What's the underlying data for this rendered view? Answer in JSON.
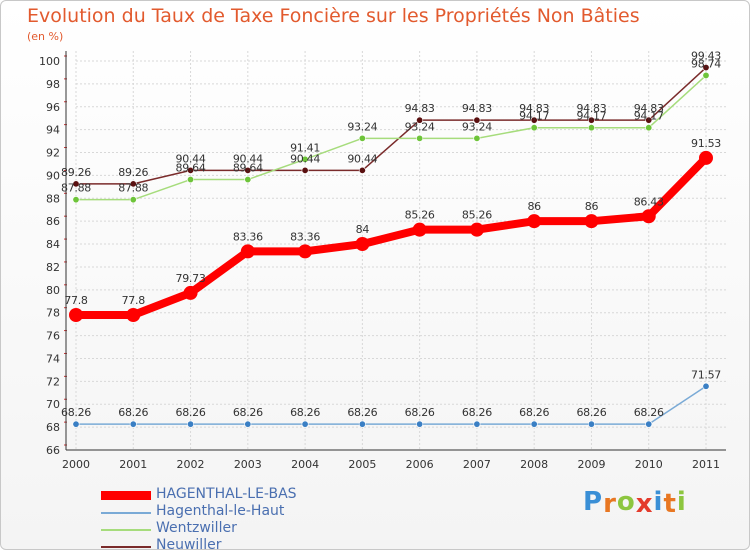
{
  "title": "Evolution du Taux de Taxe Foncière sur les Propriétés Non Bâties",
  "unit_label": "(en %)",
  "logo": {
    "letters": [
      "P",
      "r",
      "o",
      "x",
      "i",
      "t",
      "i"
    ],
    "colors": [
      "#3a8fd6",
      "#e87722",
      "#8dc63f",
      "#e43b2c",
      "#3a8fd6",
      "#e87722",
      "#8dc63f"
    ]
  },
  "chart_data": {
    "type": "line",
    "title": "Evolution du Taux de Taxe Foncière sur les Propriétés Non Bâties",
    "ylabel": "(en %)",
    "xlabel": "",
    "x": [
      2000,
      2001,
      2002,
      2003,
      2004,
      2005,
      2006,
      2007,
      2008,
      2009,
      2010,
      2011
    ],
    "ylim": [
      66,
      100
    ],
    "yticks": [
      66,
      68,
      70,
      72,
      74,
      76,
      78,
      80,
      82,
      84,
      86,
      88,
      90,
      92,
      94,
      96,
      98,
      100
    ],
    "grid": true,
    "legend_position": "bottom-left",
    "series": [
      {
        "name": "Neuwiller",
        "color": "#7a2b2b",
        "marker": "#5a1010",
        "values": [
          89.26,
          89.26,
          90.44,
          90.44,
          90.44,
          90.44,
          94.83,
          94.83,
          94.83,
          94.83,
          94.83,
          99.43
        ],
        "labels": [
          "89.26",
          "89.26",
          "90.44",
          "90.44",
          "90.44",
          "90.44",
          "94.83",
          "94.83",
          "94.83",
          "94.83",
          "94.83",
          "99.43"
        ]
      },
      {
        "name": "Wentzwiller",
        "color": "#a6dc7c",
        "marker": "#6ec43a",
        "values": [
          87.88,
          87.88,
          89.64,
          89.64,
          91.41,
          93.24,
          93.24,
          93.24,
          94.17,
          94.17,
          94.17,
          98.74
        ],
        "labels": [
          "87.88",
          "87.88",
          "89.64",
          "89.64",
          "91.41",
          "93.24",
          "93.24",
          "93.24",
          "94.17",
          "94.17",
          "94.17",
          "98.74"
        ]
      },
      {
        "name": "HAGENTHAL-LE-BAS",
        "color": "#ff0000",
        "marker": "#ff0000",
        "values": [
          77.8,
          77.8,
          79.73,
          83.36,
          83.36,
          84,
          85.26,
          85.26,
          86,
          86,
          86.43,
          91.53
        ],
        "labels": [
          "77.8",
          "77.8",
          "79.73",
          "83.36",
          "83.36",
          "84",
          "85.26",
          "85.26",
          "86",
          "86",
          "86.43",
          "91.53"
        ]
      },
      {
        "name": "Hagenthal-le-Haut",
        "color": "#7aaad6",
        "marker": "#3a7fc4",
        "values": [
          68.26,
          68.26,
          68.26,
          68.26,
          68.26,
          68.26,
          68.26,
          68.26,
          68.26,
          68.26,
          68.26,
          71.57
        ],
        "labels": [
          "68.26",
          "68.26",
          "68.26",
          "68.26",
          "68.26",
          "68.26",
          "68.26",
          "68.26",
          "68.26",
          "68.26",
          "68.26",
          "71.57"
        ]
      }
    ],
    "legend": [
      "HAGENTHAL-LE-BAS",
      "Hagenthal-le-Haut",
      "Wentzwiller",
      "Neuwiller"
    ]
  }
}
